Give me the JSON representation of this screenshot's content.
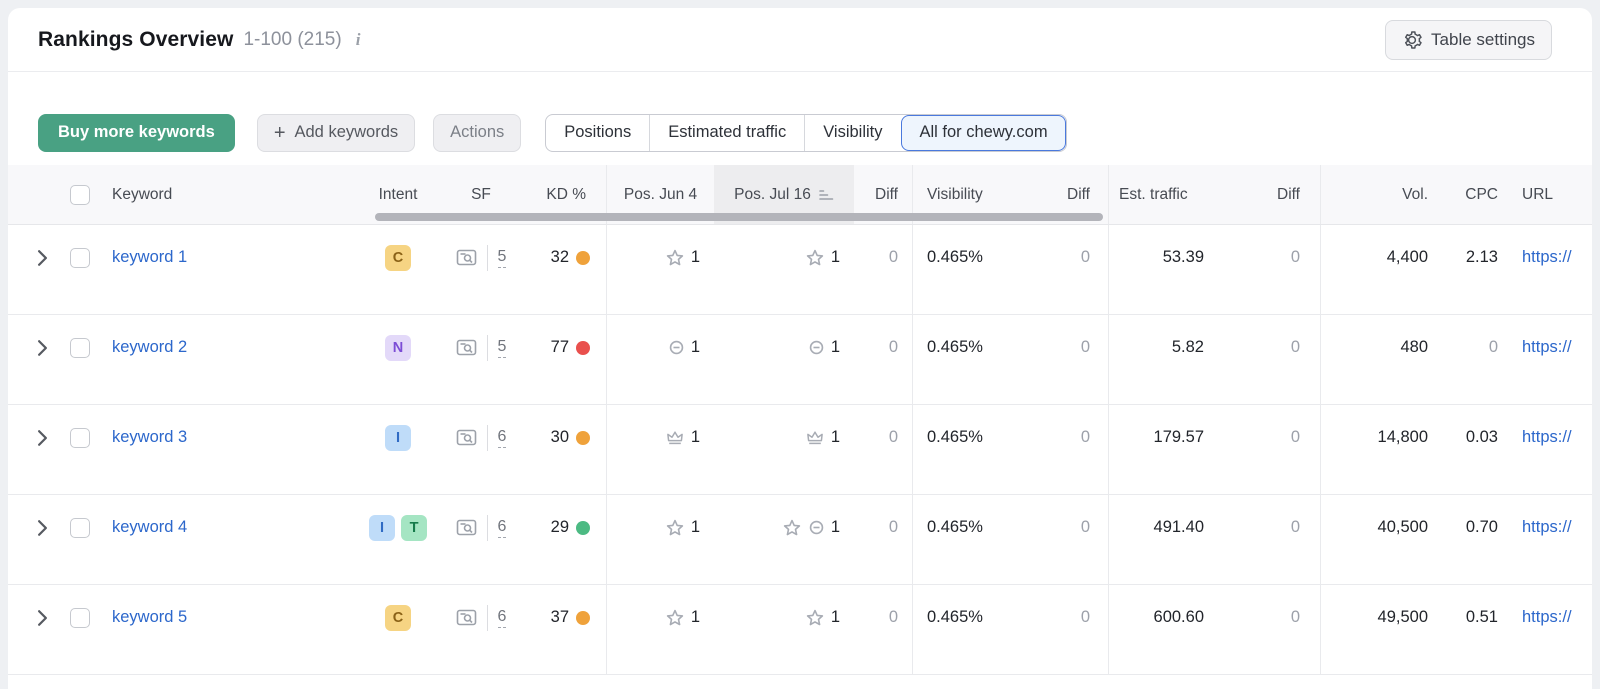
{
  "header": {
    "title": "Rankings Overview",
    "range": "1-100 (215)",
    "info_glyph": "i",
    "table_settings_label": "Table settings"
  },
  "toolbar": {
    "buy_label": "Buy more keywords",
    "add_plus": "+",
    "add_label": "Add keywords",
    "actions_label": "Actions",
    "tabs": [
      {
        "label": "Positions",
        "selected": false
      },
      {
        "label": "Estimated traffic",
        "selected": false
      },
      {
        "label": "Visibility",
        "selected": false
      },
      {
        "label": "All for chewy.com",
        "selected": true
      }
    ]
  },
  "table": {
    "headers": {
      "keyword": "Keyword",
      "intent": "Intent",
      "sf": "SF",
      "kd": "KD %",
      "pos_jun": "Pos. Jun 4",
      "pos_jul": "Pos. Jul 16",
      "diff1": "Diff",
      "visibility": "Visibility",
      "diff2": "Diff",
      "est_traffic": "Est. traffic",
      "diff3": "Diff",
      "vol": "Vol.",
      "cpc": "CPC",
      "url": "URL"
    },
    "sorted_column": "pos_jul",
    "rows": [
      {
        "keyword": "keyword 1",
        "intents": [
          "C"
        ],
        "sf": "5",
        "kd": "32",
        "kd_level": "amber",
        "pos_jun": {
          "icons": [
            "star"
          ],
          "value": "1"
        },
        "pos_jul": {
          "icons": [
            "star"
          ],
          "value": "1"
        },
        "pos_diff": "0",
        "visibility": "0.465%",
        "vis_diff": "0",
        "est_traffic": "53.39",
        "traffic_diff": "0",
        "volume": "4,400",
        "cpc": "2.13",
        "url": "https://"
      },
      {
        "keyword": "keyword 2",
        "intents": [
          "N"
        ],
        "sf": "5",
        "kd": "77",
        "kd_level": "red",
        "pos_jun": {
          "icons": [
            "link"
          ],
          "value": "1"
        },
        "pos_jul": {
          "icons": [
            "link"
          ],
          "value": "1"
        },
        "pos_diff": "0",
        "visibility": "0.465%",
        "vis_diff": "0",
        "est_traffic": "5.82",
        "traffic_diff": "0",
        "volume": "480",
        "cpc": "0",
        "url": "https://"
      },
      {
        "keyword": "keyword 3",
        "intents": [
          "I"
        ],
        "sf": "6",
        "kd": "30",
        "kd_level": "amber",
        "pos_jun": {
          "icons": [
            "crown"
          ],
          "value": "1"
        },
        "pos_jul": {
          "icons": [
            "crown"
          ],
          "value": "1"
        },
        "pos_diff": "0",
        "visibility": "0.465%",
        "vis_diff": "0",
        "est_traffic": "179.57",
        "traffic_diff": "0",
        "volume": "14,800",
        "cpc": "0.03",
        "url": "https://"
      },
      {
        "keyword": "keyword 4",
        "intents": [
          "I",
          "T"
        ],
        "sf": "6",
        "kd": "29",
        "kd_level": "green",
        "pos_jun": {
          "icons": [
            "star"
          ],
          "value": "1"
        },
        "pos_jul": {
          "icons": [
            "star",
            "link"
          ],
          "value": "1"
        },
        "pos_diff": "0",
        "visibility": "0.465%",
        "vis_diff": "0",
        "est_traffic": "491.40",
        "traffic_diff": "0",
        "volume": "40,500",
        "cpc": "0.70",
        "url": "https://"
      },
      {
        "keyword": "keyword 5",
        "intents": [
          "C"
        ],
        "sf": "6",
        "kd": "37",
        "kd_level": "amber",
        "pos_jun": {
          "icons": [
            "star"
          ],
          "value": "1"
        },
        "pos_jul": {
          "icons": [
            "star"
          ],
          "value": "1"
        },
        "pos_diff": "0",
        "visibility": "0.465%",
        "vis_diff": "0",
        "est_traffic": "600.60",
        "traffic_diff": "0",
        "volume": "49,500",
        "cpc": "0.51",
        "url": "https://"
      }
    ]
  },
  "colors": {
    "accent_green": "#49a183",
    "link_blue": "#2c67cb",
    "selected_tab_border": "#4a79dd",
    "selected_tab_bg": "#eef5fd",
    "kd": {
      "green": "#4cba83",
      "amber": "#efa23b",
      "red": "#e9504d"
    },
    "intents": {
      "C": {
        "bg": "#f6d483",
        "fg": "#8a6116"
      },
      "N": {
        "bg": "#e3d9f9",
        "fg": "#7c4dd6"
      },
      "I": {
        "bg": "#bfdcf9",
        "fg": "#2f6bc4"
      },
      "T": {
        "bg": "#a5e5c3",
        "fg": "#157a4a"
      }
    }
  }
}
